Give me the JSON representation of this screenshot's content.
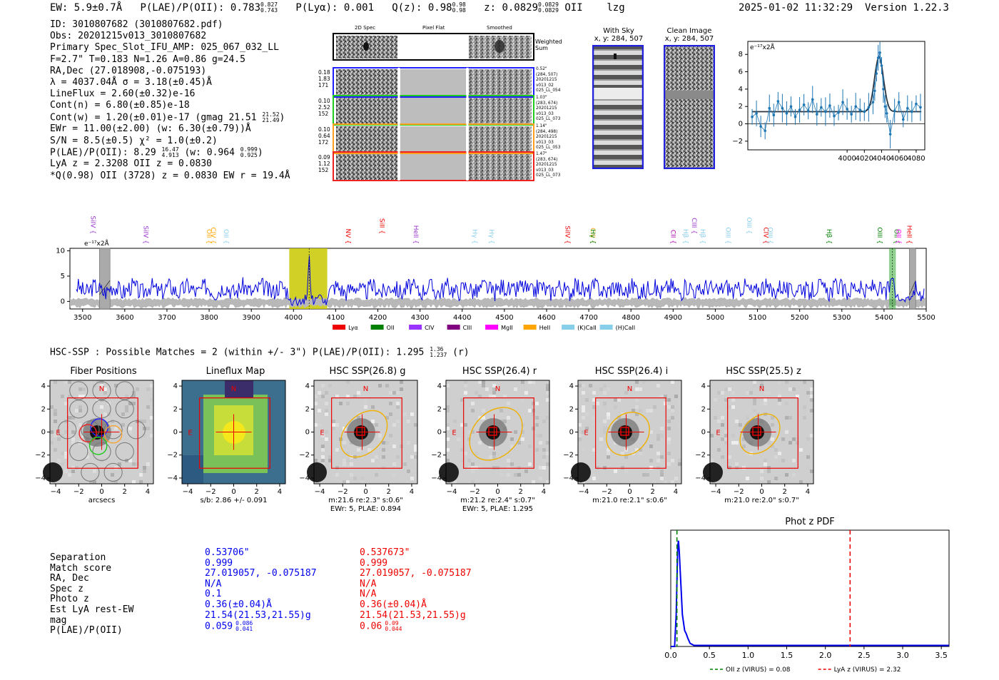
{
  "header": {
    "ew": "EW: 5.9±0.7Å",
    "plae": "P(LAE)/P(OII): 0.783",
    "plae_hi": "0.827",
    "plae_lo": "0.743",
    "plya": "P(Lyα): 0.001",
    "qz": "Q(z): 0.98",
    "qz_hi": "0.98",
    "qz_lo": "0.98",
    "z": "z: 0.0829",
    "z_hi": "0.0829",
    "z_lo": "0.0829",
    "line": "OII",
    "flag": "lzg",
    "timestamp": "2025-01-02 11:32:29",
    "version": "Version 1.22.3"
  },
  "info": {
    "id": "ID: 3010807682 (3010807682.pdf)",
    "obs": "Obs: 20201215v013_3010807682",
    "primary": "Primary Spec_Slot_IFU_AMP: 025_067_032_LL",
    "params": "F=2.7\"  T=0.183  N=1.26  A=0.86  g=24.5",
    "radec": "RA,Dec (27.018908,-0.075193)",
    "lambda": "λ = 4037.04Å  σ = 3.18(±0.45)Å",
    "lineflux": "LineFlux = 2.60(±0.32)e-16",
    "contn": "Cont(n) = 6.80(±0.85)e-18",
    "contw": "Cont(w) = 1.20(±0.01)e-17 (gmag 21.51",
    "contw_hi": "21.52",
    "contw_lo": "21.49",
    "contw_end": ")",
    "ewr": "EWr = 11.00(±2.00) (w: 6.30(±0.79))Å",
    "sn": "S/N = 8.5(±0.5)  χ² = 1.0(±0.2)",
    "plae": "P(LAE)/P(OII): 8.29",
    "plae_hi": "16.47",
    "plae_lo": "4.913",
    "plae_w": "(w: 0.964",
    "plae_w_hi": "0.999",
    "plae_w_lo": "0.925",
    "plae_w_end": ")",
    "lya": "LyA z = 2.3208  OII z = 0.0830",
    "q": "*Q(0.98) OII (3728) z = 0.0830  EW r = 19.4Å"
  },
  "spec2d": {
    "col_titles": [
      "2D Spec",
      "Pixel Flat",
      "Smoothed"
    ],
    "weighted_label": "Weighted Sum",
    "rows": [
      {
        "left": [
          "0.18",
          "1.83",
          "171"
        ],
        "right": [
          "0.52\"",
          "(284, 507)",
          "20201215",
          "v013_02",
          "025_LL_054"
        ],
        "color": "#2020ff"
      },
      {
        "left": [
          "0.10",
          "2.52",
          "152"
        ],
        "right": [
          "1.03\"",
          "(283, 674)",
          "20201215",
          "v013_03",
          "025_LL_073"
        ],
        "color": "#20cc20"
      },
      {
        "left": [
          "0.10",
          "0.64",
          "172"
        ],
        "right": [
          "1.14\"",
          "(284, 498)",
          "20201215",
          "v013_03",
          "025_LL_053"
        ],
        "color": "#ffa020"
      },
      {
        "left": [
          "0.09",
          "1.12",
          "152"
        ],
        "right": [
          "1.47\"",
          "(283, 674)",
          "20201215",
          "v013_03",
          "025_LL_073"
        ],
        "color": "#ee2020"
      }
    ]
  },
  "sky": {
    "with_sky_title": "With Sky",
    "with_sky_coord": "x, y: 284, 507",
    "clean_title": "Clean Image",
    "clean_coord": "x, y: 284, 507"
  },
  "chart_data": [
    {
      "type": "line",
      "title": "",
      "ylabel": "e⁻¹⁷x2Å",
      "xlim": [
        3885,
        4090
      ],
      "ylim": [
        -3.0,
        9.5
      ],
      "x_ticks": [
        4000,
        4020,
        4040,
        4060,
        4080
      ],
      "y_ticks": [
        -2,
        0,
        2,
        4,
        6,
        8
      ],
      "x": [
        3890,
        3895,
        3900,
        3905,
        3910,
        3915,
        3920,
        3925,
        3930,
        3935,
        3940,
        3945,
        3950,
        3955,
        3960,
        3965,
        3970,
        3975,
        3980,
        3985,
        3990,
        3995,
        4000,
        4005,
        4010,
        4015,
        4020,
        4025,
        4030,
        4032,
        4034,
        4036,
        4038,
        4040,
        4042,
        4044,
        4046,
        4050,
        4055,
        4060,
        4065,
        4070,
        4075,
        4080,
        4085
      ],
      "values": [
        0.8,
        1.2,
        -0.3,
        -0.8,
        1.8,
        1.0,
        2.6,
        1.8,
        1.2,
        2.0,
        0.8,
        1.6,
        2.2,
        1.5,
        2.8,
        1.1,
        1.9,
        1.4,
        2.1,
        0.9,
        1.3,
        2.5,
        1.7,
        1.1,
        2.0,
        1.6,
        1.4,
        1.9,
        2.5,
        3.8,
        5.8,
        7.6,
        8.2,
        6.7,
        4.0,
        2.0,
        1.2,
        -1.2,
        1.5,
        2.5,
        0.5,
        1.8,
        1.4,
        2.3,
        1.9
      ],
      "fit": "gaussian peak 7.5 at 4037, sigma 3.18, continuum 1.4"
    },
    {
      "type": "line",
      "title": "",
      "ylabel": "e⁻¹⁷x2Å",
      "xlim": [
        3470,
        5500
      ],
      "ylim": [
        -1.5,
        10.5
      ],
      "x_ticks": [
        3500,
        3600,
        3700,
        3800,
        3900,
        4000,
        4100,
        4200,
        4300,
        4400,
        4500,
        4600,
        4700,
        4800,
        4900,
        5000,
        5100,
        5200,
        5300,
        5400,
        5500
      ],
      "y_ticks": [
        0,
        5,
        10
      ],
      "highlight_range": [
        3990,
        4080
      ],
      "marker_lines": [
        4037.04,
        5420
      ],
      "line_labels": [
        {
          "name": "SiIV",
          "x": 3515,
          "color": "#9933cc"
        },
        {
          "name": "SiIV",
          "x": 3640,
          "color": "#9933cc"
        },
        {
          "name": "OII",
          "x": 3790,
          "color": "#ffa500"
        },
        {
          "name": "CIV",
          "x": 3800,
          "color": "#ffa500"
        },
        {
          "name": "OII",
          "x": 3830,
          "color": "#87ceeb"
        },
        {
          "name": "NV",
          "x": 4120,
          "color": "#ee0000"
        },
        {
          "name": "SiII",
          "x": 4200,
          "color": "#ee0000"
        },
        {
          "name": "HeII",
          "x": 4280,
          "color": "#9933cc"
        },
        {
          "name": "Hγ",
          "x": 4420,
          "color": "#87ceeb"
        },
        {
          "name": "Hγ",
          "x": 4460,
          "color": "#87ceeb"
        },
        {
          "name": "SiIV",
          "x": 4640,
          "color": "#ee0000"
        },
        {
          "name": "CIII",
          "x": 4700,
          "color": "#ffa500"
        },
        {
          "name": "Hγ",
          "x": 4700,
          "color": "#008000"
        },
        {
          "name": "CII",
          "x": 4890,
          "color": "#aa00aa"
        },
        {
          "name": "Hβ",
          "x": 4920,
          "color": "#87ceeb"
        },
        {
          "name": "CIII",
          "x": 4940,
          "color": "#9933cc"
        },
        {
          "name": "Hβ",
          "x": 4960,
          "color": "#87ceeb"
        },
        {
          "name": "OIII",
          "x": 5020,
          "color": "#87ceeb"
        },
        {
          "name": "OIII",
          "x": 5070,
          "color": "#87ceeb"
        },
        {
          "name": "CIV",
          "x": 5110,
          "color": "#ee0000"
        },
        {
          "name": "OIII",
          "x": 5120,
          "color": "#87ceeb"
        },
        {
          "name": "Hβ",
          "x": 5260,
          "color": "#008000"
        },
        {
          "name": "OIII",
          "x": 5380,
          "color": "#008000"
        },
        {
          "name": "OII",
          "x": 5420,
          "color": "#008000"
        },
        {
          "name": "OII",
          "x": 5425,
          "color": "#ff00ff"
        },
        {
          "name": "HeII",
          "x": 5450,
          "color": "#ee0000"
        }
      ],
      "legend": [
        {
          "name": "Lyα",
          "color": "#ee0000"
        },
        {
          "name": "OII",
          "color": "#008000"
        },
        {
          "name": "CIV",
          "color": "#9933ff"
        },
        {
          "name": "CIII",
          "color": "#800080"
        },
        {
          "name": "MgII",
          "color": "#ff00ff"
        },
        {
          "name": "HeII",
          "color": "#ffa500"
        },
        {
          "name": "(K)CaII",
          "color": "#87ceeb"
        },
        {
          "name": "(H)CaII",
          "color": "#87ceeb"
        }
      ]
    },
    {
      "type": "line",
      "title": "Phot z PDF",
      "xlim": [
        0.0,
        3.6
      ],
      "ylim": [
        0,
        1.1
      ],
      "x_ticks": [
        0.0,
        0.5,
        1.0,
        1.5,
        2.0,
        2.5,
        3.0,
        3.5
      ],
      "x": [
        0.0,
        0.05,
        0.07,
        0.09,
        0.1,
        0.11,
        0.13,
        0.15,
        0.18,
        0.2,
        0.22,
        0.25,
        0.3,
        0.5,
        1.0,
        2.0,
        3.6
      ],
      "values": [
        0.0,
        0.0,
        0.3,
        0.95,
        1.0,
        0.9,
        0.6,
        0.3,
        0.15,
        0.12,
        0.08,
        0.03,
        0.01,
        0.01,
        0.01,
        0.01,
        0.01
      ],
      "vlines": [
        {
          "x": 0.08,
          "label": "OII z (VIRUS) = 0.08",
          "color": "#008000"
        },
        {
          "x": 2.32,
          "label": "LyA z (VIRUS) = 2.32",
          "color": "#ee0000"
        }
      ]
    }
  ],
  "zoom": {
    "ytick_label": "e⁻¹⁷x2Å"
  },
  "hsc": {
    "title": "HSC-SSP : Possible Matches = 2 (within +/- 3\")  P(LAE)/P(OII): 1.295",
    "plae_hi": "1.36",
    "plae_lo": "1.237",
    "band": "(r)"
  },
  "cutouts": [
    {
      "title": "Fiber Positions",
      "sub1": "arcsecs",
      "sub2": ""
    },
    {
      "title": "Lineflux Map",
      "sub1": "s/b: 2.86 +/- 0.091",
      "sub2": ""
    },
    {
      "title": "HSC SSP(26.8) g",
      "sub1": "m:21.6  re:2.3\"  s:0.6\"",
      "sub2": "EWr: 5, PLAE: 0.894"
    },
    {
      "title": "HSC SSP(26.4) r",
      "sub1": "m:21.2  re:2.4\"  s:0.7\"",
      "sub2": "EWr: 5, PLAE: 1.295"
    },
    {
      "title": "HSC SSP(26.4) i",
      "sub1": "m:21.0  re:2.1\"  s:0.6\"",
      "sub2": ""
    },
    {
      "title": "HSC SSP(25.5) z",
      "sub1": "m:21.0  re:2.0\"  s:0.7\"",
      "sub2": ""
    }
  ],
  "cutout_axes": {
    "ticks": [
      "−4",
      "−2",
      "0",
      "2",
      "4"
    ],
    "north": "N",
    "east": "E"
  },
  "matches": {
    "labels": [
      "Separation",
      "Match score",
      "RA, Dec",
      "Spec z",
      "Photo z",
      "Est LyA rest-EW",
      "mag",
      "P(LAE)/P(OII)"
    ],
    "col1": [
      "0.53706\"",
      "0.999",
      "27.019057, -0.075187",
      "N/A",
      "0.1",
      "0.36(±0.04)Å",
      "21.54(21.53,21.55)g",
      "0.059"
    ],
    "col1_plae_hi": "0.086",
    "col1_plae_lo": "0.041",
    "col2": [
      "0.537673\"",
      "0.999",
      "27.019057, -0.075187",
      "N/A",
      "N/A",
      "0.36(±0.04)Å",
      "21.54(21.53,21.55)g",
      "0.06"
    ],
    "col2_plae_hi": "0.09",
    "col2_plae_lo": "0.044"
  },
  "colors": {
    "blue": "#0000ee",
    "red": "#ee0000",
    "yellow": "#c8c800",
    "orange": "#f0b000"
  }
}
